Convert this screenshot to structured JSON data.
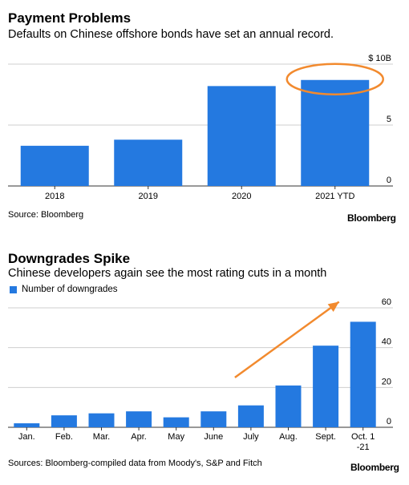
{
  "charts": [
    {
      "title": "Payment Problems",
      "subtitle": "Defaults on Chinese offshore bonds have set an annual record.",
      "source": "Source: Bloomberg",
      "brand": "Bloomberg"
    },
    {
      "title": "Downgrades Spike",
      "subtitle": "Chinese developers again see the most rating cuts in a month",
      "source": "Sources: Bloomberg-compiled data from Moody's, S&P and Fitch",
      "brand": "Bloomberg",
      "legend": "Number of downgrades"
    }
  ],
  "chart_data": [
    {
      "type": "bar",
      "title": "Payment Problems",
      "categories": [
        "2018",
        "2019",
        "2020",
        "2021 YTD"
      ],
      "values": [
        3.3,
        3.8,
        8.2,
        8.7
      ],
      "ylim": [
        0,
        10
      ],
      "yticks": [
        0,
        5,
        10
      ],
      "ytick_labels": [
        "0",
        "5",
        "$ 10B"
      ],
      "axis_side": "right",
      "bar_color": "#2479e0",
      "annotation": "orange ellipse around 2021 YTD bar",
      "annotation_color": "#f28a2e",
      "grid": true
    },
    {
      "type": "bar",
      "title": "Downgrades Spike",
      "categories": [
        "Jan.",
        "Feb.",
        "Mar.",
        "Apr.",
        "May",
        "June",
        "July",
        "Aug.",
        "Sept.",
        "Oct. 1 -21"
      ],
      "category_labels": [
        [
          "Jan."
        ],
        [
          "Feb."
        ],
        [
          "Mar."
        ],
        [
          "Apr."
        ],
        [
          "May"
        ],
        [
          "June"
        ],
        [
          "July"
        ],
        [
          "Aug."
        ],
        [
          "Sept."
        ],
        [
          "Oct. 1",
          "-21"
        ]
      ],
      "series": [
        {
          "name": "Number of downgrades",
          "values": [
            2,
            6,
            7,
            8,
            5,
            8,
            11,
            21,
            41,
            53
          ]
        }
      ],
      "ylim": [
        0,
        60
      ],
      "yticks": [
        0,
        20,
        40,
        60
      ],
      "axis_side": "right",
      "bar_color": "#2479e0",
      "annotation": "orange arrow pointing up-right toward Oct. bar",
      "annotation_color": "#f28a2e",
      "grid": true
    }
  ]
}
